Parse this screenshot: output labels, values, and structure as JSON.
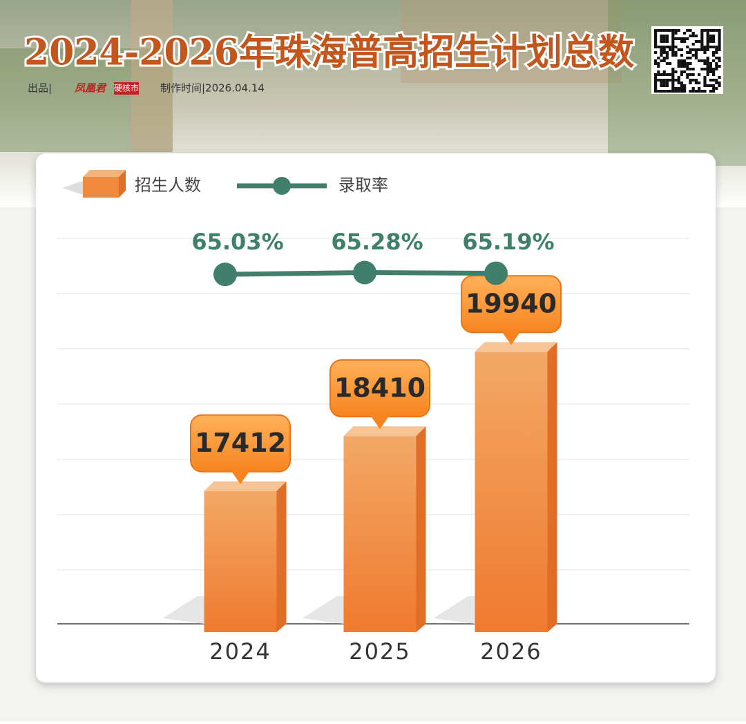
{
  "chart_data": {
    "type": "combo",
    "title": "2024-2026年珠海普高招生计划总数",
    "credits": {
      "label": "出品|",
      "brand": "凤凰君",
      "tag": "硬核市",
      "date": "制作时间|2026.04.14"
    },
    "categories": [
      "2024",
      "2025",
      "2026"
    ],
    "series": [
      {
        "name": "招生人数",
        "type": "bar",
        "color": "#f08a3a",
        "values": [
          17412,
          18410,
          19940
        ]
      },
      {
        "name": "录取率",
        "type": "line",
        "axis": "y2",
        "color": "#3f7f6c",
        "values": [
          65.03,
          65.28,
          65.19
        ],
        "value_labels": [
          "65.03%",
          "65.28%",
          "65.19%"
        ]
      }
    ],
    "ylim": [
      15000,
      22000
    ],
    "y2lim": [
      60,
      70
    ]
  }
}
